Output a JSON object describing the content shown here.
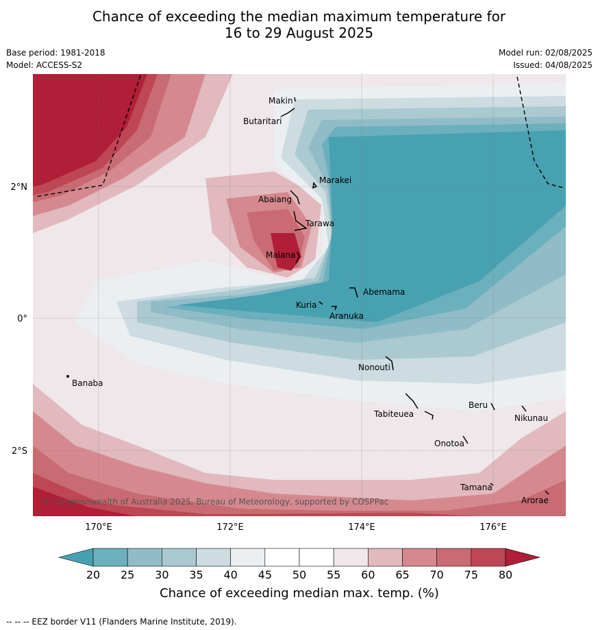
{
  "title_line1": "Chance of exceeding the median maximum temperature for",
  "title_line2": "16 to 29 August 2025",
  "base_period": "Base period: 1981-2018",
  "model": "Model: ACCESS-S2",
  "model_run": "Model run: 02/08/2025",
  "issued": "Issued: 04/08/2025",
  "copyright": "© Commonwealth of Australia 2025, Bureau of Meteorology, supported by COSPPac",
  "footnote": "--  --  -- EEZ border V11 (Flanders Marine Institute, 2019).",
  "lat_labels": [
    "2°N",
    "0°",
    "2°S"
  ],
  "lon_labels": [
    "170°E",
    "172°E",
    "174°E",
    "176°E"
  ],
  "places": [
    "Makin",
    "Butaritari",
    "Marakei",
    "Abaiang",
    "Tarawa",
    "Maiana",
    "Abemama",
    "Kuria",
    "Aranuka",
    "Nonouti",
    "Banaba",
    "Beru",
    "Nikunau",
    "Tabiteuea",
    "Onotoa",
    "Tamana",
    "Arorae"
  ],
  "colorbar": {
    "label": "Chance of exceeding median max. temp. (%)",
    "ticks": [
      "20",
      "25",
      "30",
      "35",
      "40",
      "45",
      "50",
      "55",
      "60",
      "65",
      "70",
      "75",
      "80"
    ],
    "colors": [
      "#48a1b1",
      "#6cb0bd",
      "#8fbcc7",
      "#abc9d0",
      "#ccdce1",
      "#ebeff2",
      "#ffffff",
      "#ffffff",
      "#efe7e9",
      "#e1b9be",
      "#d5898f",
      "#c96b73",
      "#be4655",
      "#b01e37"
    ]
  }
}
